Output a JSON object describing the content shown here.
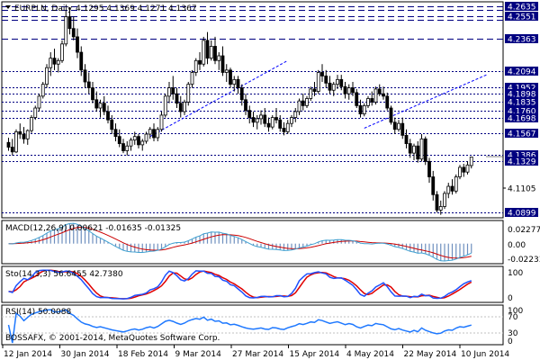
{
  "symbol_header": {
    "arrow_icon": "triangle-down-icon",
    "title": "EURPLN, Daily",
    "ohlc": "4.1295 4.1369 4.1271 4.1367"
  },
  "copyright": "BOSSAFX, © 2001-2014, MetaQuotes Software Corp.",
  "colors": {
    "bull_candle": "#ffffff",
    "bear_candle": "#000000",
    "level_lines": "#000080",
    "trendlines": "#0000ff",
    "price_tag_bg": "#000080",
    "macd_hist": "#6f8fbf",
    "macd_signal": "#cc0000",
    "macd_line": "#3fa0d0",
    "stoch_main": "#1e50ff",
    "stoch_signal": "#e00000",
    "rsi_line": "#1e78ff"
  },
  "price_axis": {
    "labels": [
      "4.2635",
      "4.2551",
      "4.2363",
      "4.2094",
      "4.1952",
      "4.1898",
      "4.1835",
      "4.1760",
      "4.1698",
      "4.1567",
      "4.1386",
      "4.1329",
      "4.1105",
      "4.0899"
    ],
    "current_price": "4.1367"
  },
  "level_lines": [
    4.2635,
    4.2551,
    4.2363,
    4.2094,
    4.1952,
    4.1898,
    4.1835,
    4.176,
    4.1698,
    4.1567,
    4.1386,
    4.1329,
    4.0899
  ],
  "date_axis": [
    "12 Jan 2014",
    "30 Jan 2014",
    "18 Feb 2014",
    "9 Mar 2014",
    "27 Mar 2014",
    "15 Apr 2014",
    "4 May 2014",
    "22 May 2014",
    "10 Jun 2014"
  ],
  "macd": {
    "label": "MACD(12,26,9) 0.00621 -0.01635 -0.01325",
    "axis": [
      "0.02277",
      "0.00",
      "-0.02233"
    ]
  },
  "stoch": {
    "label": "Sto(14,3,3) 56.6455 42.7380",
    "axis": [
      "100",
      "0"
    ]
  },
  "rsi": {
    "label": "RSI(14) 50.0088",
    "axis": [
      "100",
      "70",
      "30",
      "0"
    ]
  },
  "chart_data": {
    "type": "candlestick",
    "symbol": "EURPLN",
    "timeframe": "Daily",
    "ylim": [
      4.087,
      4.266
    ],
    "trendlines": [
      {
        "from": {
          "index": 37,
          "price": 4.154
        },
        "to": {
          "index": 73,
          "price": 4.218
        }
      },
      {
        "from": {
          "index": 93,
          "price": 4.161
        },
        "to": {
          "index": 125,
          "price": 4.206
        }
      }
    ],
    "candles": [
      [
        4.149,
        4.153,
        4.142,
        4.145
      ],
      [
        4.145,
        4.152,
        4.138,
        4.141
      ],
      [
        4.141,
        4.16,
        4.14,
        4.158
      ],
      [
        4.158,
        4.165,
        4.152,
        4.156
      ],
      [
        4.156,
        4.162,
        4.148,
        4.152
      ],
      [
        4.152,
        4.16,
        4.147,
        4.159
      ],
      [
        4.159,
        4.172,
        4.157,
        4.17
      ],
      [
        4.17,
        4.18,
        4.168,
        4.178
      ],
      [
        4.178,
        4.19,
        4.175,
        4.188
      ],
      [
        4.188,
        4.2,
        4.186,
        4.198
      ],
      [
        4.198,
        4.215,
        4.195,
        4.212
      ],
      [
        4.212,
        4.225,
        4.205,
        4.22
      ],
      [
        4.22,
        4.228,
        4.21,
        4.215
      ],
      [
        4.215,
        4.22,
        4.208,
        4.218
      ],
      [
        4.218,
        4.235,
        4.216,
        4.232
      ],
      [
        4.232,
        4.26,
        4.23,
        4.255
      ],
      [
        4.255,
        4.263,
        4.24,
        4.245
      ],
      [
        4.245,
        4.255,
        4.235,
        4.238
      ],
      [
        4.238,
        4.245,
        4.22,
        4.225
      ],
      [
        4.225,
        4.23,
        4.205,
        4.21
      ],
      [
        4.21,
        4.215,
        4.195,
        4.2
      ],
      [
        4.2,
        4.208,
        4.19,
        4.195
      ],
      [
        4.195,
        4.2,
        4.182,
        4.185
      ],
      [
        4.185,
        4.192,
        4.175,
        4.178
      ],
      [
        4.178,
        4.185,
        4.17,
        4.182
      ],
      [
        4.182,
        4.188,
        4.172,
        4.175
      ],
      [
        4.175,
        4.18,
        4.165,
        4.168
      ],
      [
        4.168,
        4.172,
        4.156,
        4.16
      ],
      [
        4.16,
        4.165,
        4.15,
        4.154
      ],
      [
        4.154,
        4.16,
        4.145,
        4.148
      ],
      [
        4.148,
        4.152,
        4.14,
        4.142
      ],
      [
        4.142,
        4.15,
        4.138,
        4.146
      ],
      [
        4.146,
        4.153,
        4.142,
        4.151
      ],
      [
        4.151,
        4.158,
        4.147,
        4.154
      ],
      [
        4.154,
        4.156,
        4.144,
        4.147
      ],
      [
        4.147,
        4.152,
        4.142,
        4.15
      ],
      [
        4.15,
        4.158,
        4.148,
        4.156
      ],
      [
        4.156,
        4.162,
        4.152,
        4.16
      ],
      [
        4.16,
        4.165,
        4.15,
        4.153
      ],
      [
        4.153,
        4.162,
        4.15,
        4.16
      ],
      [
        4.16,
        4.175,
        4.158,
        4.172
      ],
      [
        4.172,
        4.19,
        4.17,
        4.188
      ],
      [
        4.188,
        4.2,
        4.182,
        4.195
      ],
      [
        4.195,
        4.205,
        4.185,
        4.19
      ],
      [
        4.19,
        4.195,
        4.178,
        4.182
      ],
      [
        4.182,
        4.188,
        4.17,
        4.175
      ],
      [
        4.175,
        4.185,
        4.172,
        4.183
      ],
      [
        4.183,
        4.2,
        4.18,
        4.198
      ],
      [
        4.198,
        4.21,
        4.195,
        4.208
      ],
      [
        4.208,
        4.22,
        4.205,
        4.218
      ],
      [
        4.218,
        4.225,
        4.21,
        4.215
      ],
      [
        4.215,
        4.238,
        4.213,
        4.235
      ],
      [
        4.235,
        4.242,
        4.215,
        4.22
      ],
      [
        4.22,
        4.235,
        4.218,
        4.23
      ],
      [
        4.23,
        4.238,
        4.215,
        4.218
      ],
      [
        4.218,
        4.225,
        4.21,
        4.222
      ],
      [
        4.222,
        4.23,
        4.205,
        4.208
      ],
      [
        4.208,
        4.215,
        4.2,
        4.21
      ],
      [
        4.21,
        4.212,
        4.195,
        4.198
      ],
      [
        4.198,
        4.205,
        4.192,
        4.202
      ],
      [
        4.202,
        4.205,
        4.19,
        4.195
      ],
      [
        4.195,
        4.198,
        4.18,
        4.185
      ],
      [
        4.185,
        4.19,
        4.172,
        4.176
      ],
      [
        4.176,
        4.18,
        4.165,
        4.17
      ],
      [
        4.17,
        4.175,
        4.162,
        4.166
      ],
      [
        4.166,
        4.172,
        4.16,
        4.169
      ],
      [
        4.169,
        4.176,
        4.164,
        4.172
      ],
      [
        4.172,
        4.178,
        4.162,
        4.165
      ],
      [
        4.165,
        4.17,
        4.158,
        4.162
      ],
      [
        4.162,
        4.172,
        4.16,
        4.17
      ],
      [
        4.17,
        4.178,
        4.165,
        4.168
      ],
      [
        4.168,
        4.172,
        4.158,
        4.161
      ],
      [
        4.161,
        4.166,
        4.155,
        4.158
      ],
      [
        4.158,
        4.168,
        4.156,
        4.165
      ],
      [
        4.165,
        4.172,
        4.162,
        4.17
      ],
      [
        4.17,
        4.178,
        4.166,
        4.175
      ],
      [
        4.175,
        4.186,
        4.172,
        4.184
      ],
      [
        4.184,
        4.19,
        4.176,
        4.18
      ],
      [
        4.18,
        4.188,
        4.178,
        4.186
      ],
      [
        4.186,
        4.196,
        4.184,
        4.194
      ],
      [
        4.194,
        4.2,
        4.188,
        4.192
      ],
      [
        4.192,
        4.21,
        4.19,
        4.208
      ],
      [
        4.208,
        4.215,
        4.2,
        4.205
      ],
      [
        4.205,
        4.21,
        4.195,
        4.199
      ],
      [
        4.199,
        4.205,
        4.19,
        4.193
      ],
      [
        4.193,
        4.2,
        4.188,
        4.198
      ],
      [
        4.198,
        4.206,
        4.194,
        4.202
      ],
      [
        4.202,
        4.206,
        4.193,
        4.196
      ],
      [
        4.196,
        4.2,
        4.186,
        4.19
      ],
      [
        4.19,
        4.198,
        4.185,
        4.195
      ],
      [
        4.195,
        4.2,
        4.188,
        4.191
      ],
      [
        4.191,
        4.194,
        4.178,
        4.18
      ],
      [
        4.18,
        4.185,
        4.17,
        4.173
      ],
      [
        4.173,
        4.182,
        4.171,
        4.18
      ],
      [
        4.18,
        4.188,
        4.178,
        4.186
      ],
      [
        4.186,
        4.192,
        4.18,
        4.183
      ],
      [
        4.183,
        4.196,
        4.181,
        4.194
      ],
      [
        4.194,
        4.198,
        4.188,
        4.19
      ],
      [
        4.19,
        4.196,
        4.185,
        4.188
      ],
      [
        4.188,
        4.191,
        4.176,
        4.178
      ],
      [
        4.178,
        4.18,
        4.164,
        4.166
      ],
      [
        4.166,
        4.17,
        4.156,
        4.16
      ],
      [
        4.16,
        4.168,
        4.158,
        4.165
      ],
      [
        4.165,
        4.17,
        4.152,
        4.155
      ],
      [
        4.155,
        4.16,
        4.144,
        4.148
      ],
      [
        4.148,
        4.152,
        4.136,
        4.14
      ],
      [
        4.14,
        4.148,
        4.134,
        4.146
      ],
      [
        4.146,
        4.15,
        4.132,
        4.135
      ],
      [
        4.135,
        4.156,
        4.133,
        4.152
      ],
      [
        4.152,
        4.154,
        4.13,
        4.133
      ],
      [
        4.133,
        4.136,
        4.115,
        4.12
      ],
      [
        4.12,
        4.125,
        4.1,
        4.105
      ],
      [
        4.105,
        4.108,
        4.09,
        4.092
      ],
      [
        4.092,
        4.1,
        4.088,
        4.095
      ],
      [
        4.095,
        4.108,
        4.093,
        4.106
      ],
      [
        4.106,
        4.115,
        4.102,
        4.112
      ],
      [
        4.112,
        4.118,
        4.105,
        4.108
      ],
      [
        4.108,
        4.122,
        4.106,
        4.12
      ],
      [
        4.12,
        4.13,
        4.118,
        4.128
      ],
      [
        4.128,
        4.131,
        4.12,
        4.124
      ],
      [
        4.124,
        4.133,
        4.122,
        4.13
      ],
      [
        4.1295,
        4.1369,
        4.1271,
        4.1367
      ]
    ]
  }
}
